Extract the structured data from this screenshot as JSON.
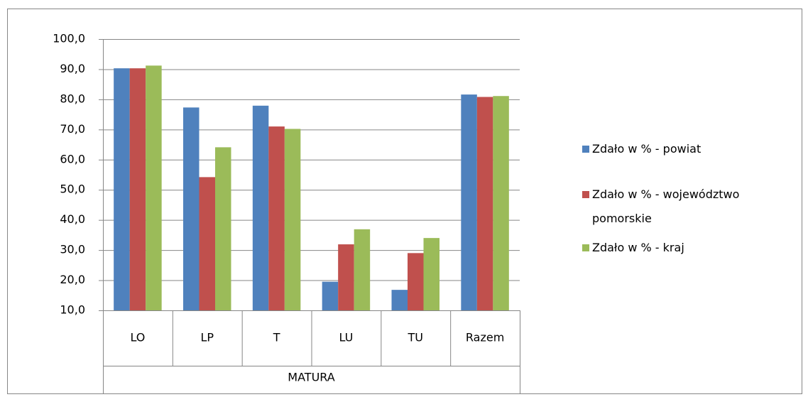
{
  "chart_data": {
    "type": "bar",
    "categories": [
      "LO",
      "LP",
      "T",
      "LU",
      "TU",
      "Razem"
    ],
    "x_group_label": "MATURA",
    "series": [
      {
        "name": "Zdało w % - powiat",
        "color": "#4f81bd",
        "values": [
          90.3,
          77.3,
          77.9,
          19.5,
          16.8,
          81.6
        ]
      },
      {
        "name": "Zdało w % - województwo pomorskie",
        "color": "#c0504d",
        "values": [
          90.3,
          54.2,
          71.0,
          31.9,
          29.0,
          80.8
        ]
      },
      {
        "name": "Zdało w % - kraj",
        "color": "#9bbb59",
        "values": [
          91.2,
          64.1,
          70.2,
          36.9,
          34.0,
          81.1
        ]
      }
    ],
    "ylim": [
      10,
      100
    ],
    "yticks": [
      {
        "value": 10,
        "label": "10,0"
      },
      {
        "value": 20,
        "label": "20,0"
      },
      {
        "value": 30,
        "label": "30,0"
      },
      {
        "value": 40,
        "label": "40,0"
      },
      {
        "value": 50,
        "label": "50,0"
      },
      {
        "value": 60,
        "label": "60,0"
      },
      {
        "value": 70,
        "label": "70,0"
      },
      {
        "value": 80,
        "label": "80,0"
      },
      {
        "value": 90,
        "label": "90,0"
      },
      {
        "value": 100,
        "label": "100,0"
      }
    ],
    "grid": true,
    "legend": "right"
  }
}
